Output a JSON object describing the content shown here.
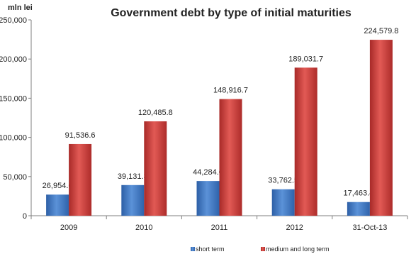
{
  "chart_data": {
    "type": "bar",
    "title": "Government debt by type of initial maturities",
    "unit_label": "mln lei",
    "categories": [
      "2009",
      "2010",
      "2011",
      "2012",
      "31-Oct-13"
    ],
    "series": [
      {
        "name": "short term",
        "color": "#3f78c7",
        "values": [
          26954.6,
          39131.3,
          44284.0,
          33762.5,
          17463.4
        ],
        "labels": [
          "26,954.6",
          "39,131.3",
          "44,284.0",
          "33,762.5",
          "17,463.4"
        ]
      },
      {
        "name": "medium and long term",
        "color": "#cf3a37",
        "values": [
          91536.6,
          120485.8,
          148916.7,
          189031.7,
          224579.8
        ],
        "labels": [
          "91,536.6",
          "120,485.8",
          "148,916.7",
          "189,031.7",
          "224,579.8"
        ]
      }
    ],
    "ylim": [
      0,
      250000
    ],
    "yticks": [
      0,
      50000,
      100000,
      150000,
      200000,
      250000
    ],
    "ytick_labels": [
      "0",
      "50,000",
      "100,000",
      "150,000",
      "200,000",
      "250,000"
    ],
    "grid": false,
    "legend_position": "bottom"
  }
}
